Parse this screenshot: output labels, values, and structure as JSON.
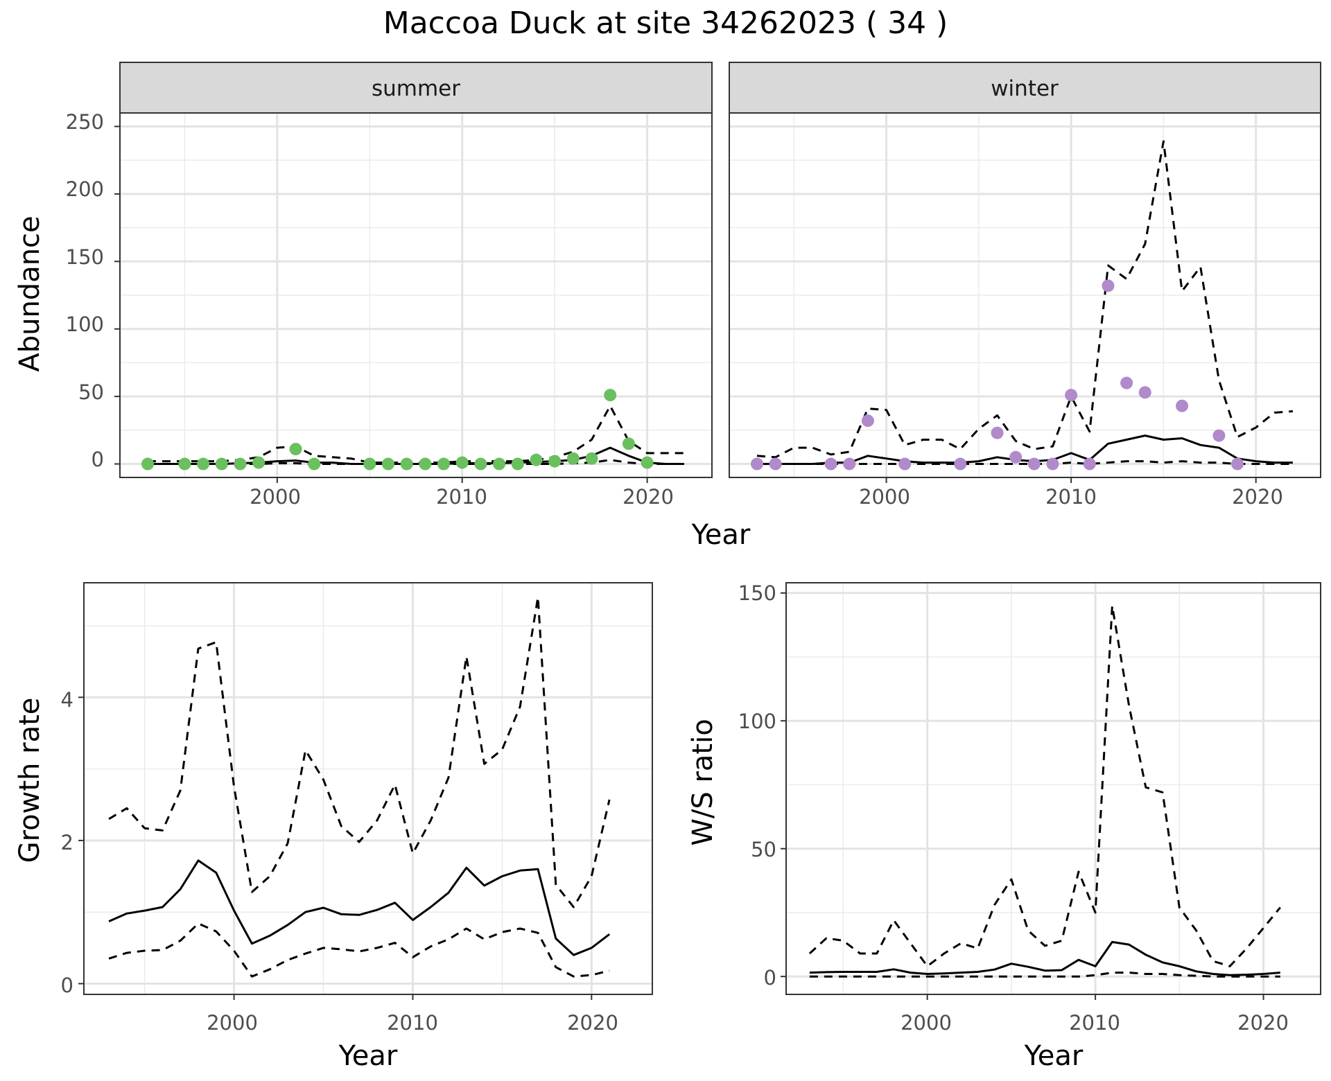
{
  "title": "Maccoa Duck at site 34262023 ( 34 )",
  "colors": {
    "summer_points": "#6abf5e",
    "winter_points": "#b08acb",
    "line": "#000000"
  },
  "abundance_panel": {
    "ylabel": "Abundance",
    "xlabel": "Year",
    "y_ticks": [
      "0",
      "50",
      "100",
      "150",
      "200",
      "250"
    ],
    "x_ticks": [
      "2000",
      "2010",
      "2020"
    ],
    "strip_summer": "summer",
    "strip_winter": "winter"
  },
  "growth_panel": {
    "ylabel": "Growth rate",
    "xlabel": "Year",
    "y_ticks": [
      "0",
      "2",
      "4"
    ],
    "x_ticks": [
      "2000",
      "2010",
      "2020"
    ]
  },
  "ratio_panel": {
    "ylabel": "W/S ratio",
    "xlabel": "Year",
    "y_ticks": [
      "0",
      "50",
      "100",
      "150"
    ],
    "x_ticks": [
      "2000",
      "2010",
      "2020"
    ]
  },
  "chart_data": [
    {
      "type": "scatter",
      "facet": "summer",
      "ylim": [
        -10,
        260
      ],
      "xlim": [
        1991.5,
        2023.5
      ],
      "points": {
        "x": [
          1993,
          1995,
          1996,
          1997,
          1998,
          1999,
          2001,
          2002,
          2005,
          2006,
          2007,
          2008,
          2009,
          2010,
          2011,
          2012,
          2013,
          2014,
          2015,
          2016,
          2017,
          2018,
          2019,
          2020
        ],
        "y": [
          0,
          0,
          0,
          0,
          0,
          1,
          11,
          0,
          0,
          0,
          0,
          0,
          0,
          1,
          0,
          0,
          0,
          3,
          2,
          4,
          4,
          51,
          15,
          1
        ]
      },
      "series": [
        {
          "name": "estimate",
          "style": "solid",
          "x": [
            1993,
            1994,
            1995,
            1996,
            1997,
            1998,
            1999,
            2000,
            2001,
            2002,
            2003,
            2004,
            2005,
            2006,
            2007,
            2008,
            2009,
            2010,
            2011,
            2012,
            2013,
            2014,
            2015,
            2016,
            2017,
            2018,
            2019,
            2020,
            2021,
            2022
          ],
          "y": [
            0,
            0,
            0,
            0,
            0,
            0.5,
            1,
            2,
            2.5,
            1,
            1,
            0,
            0,
            0,
            0,
            0,
            0,
            0.5,
            0.5,
            0.5,
            1,
            1.5,
            2,
            3,
            6,
            12,
            6,
            1,
            0,
            0
          ]
        },
        {
          "name": "upper",
          "style": "dashed",
          "x": [
            1993,
            1994,
            1995,
            1996,
            1997,
            1998,
            1999,
            2000,
            2001,
            2002,
            2003,
            2004,
            2005,
            2006,
            2007,
            2008,
            2009,
            2010,
            2011,
            2012,
            2013,
            2014,
            2015,
            2016,
            2017,
            2018,
            2019,
            2020,
            2021,
            2022
          ],
          "y": [
            2,
            2,
            2,
            2,
            2,
            3,
            5,
            12,
            13,
            6,
            5,
            4,
            1,
            1,
            1,
            1,
            1,
            2,
            2,
            2,
            2,
            3,
            5,
            9,
            18,
            43,
            17,
            8,
            8,
            8
          ]
        },
        {
          "name": "lower",
          "style": "dashed",
          "x": [
            1993,
            1994,
            1995,
            1996,
            1997,
            1998,
            1999,
            2000,
            2001,
            2002,
            2003,
            2004,
            2005,
            2006,
            2007,
            2008,
            2009,
            2010,
            2011,
            2012,
            2013,
            2014,
            2015,
            2016,
            2017,
            2018,
            2019,
            2020,
            2021,
            2022
          ],
          "y": [
            0,
            0,
            0,
            0,
            0,
            0,
            0,
            0.5,
            0.5,
            0,
            0,
            0,
            0,
            0,
            0,
            0,
            0,
            0,
            0,
            0,
            0,
            0,
            0,
            0.5,
            1,
            3,
            1,
            0,
            0,
            0
          ]
        }
      ]
    },
    {
      "type": "scatter",
      "facet": "winter",
      "ylim": [
        -10,
        260
      ],
      "xlim": [
        1991.5,
        2023.5
      ],
      "points": {
        "x": [
          1993,
          1994,
          1997,
          1998,
          1999,
          2001,
          2004,
          2006,
          2007,
          2008,
          2009,
          2010,
          2011,
          2012,
          2013,
          2014,
          2016,
          2018,
          2019
        ],
        "y": [
          0,
          0,
          0,
          0,
          32,
          0,
          0,
          23,
          5,
          0,
          0,
          51,
          0,
          132,
          60,
          53,
          43,
          21,
          0
        ]
      },
      "series": [
        {
          "name": "estimate",
          "style": "solid",
          "x": [
            1993,
            1994,
            1995,
            1996,
            1997,
            1998,
            1999,
            2000,
            2001,
            2002,
            2003,
            2004,
            2005,
            2006,
            2007,
            2008,
            2009,
            2010,
            2011,
            2012,
            2013,
            2014,
            2015,
            2016,
            2017,
            2018,
            2019,
            2020,
            2021,
            2022
          ],
          "y": [
            0,
            0,
            0,
            0,
            1,
            1,
            6,
            4,
            2,
            1,
            1,
            1,
            2,
            5,
            3,
            2,
            3,
            8,
            3,
            15,
            18,
            21,
            18,
            19,
            14,
            12,
            4,
            2,
            1,
            1
          ]
        },
        {
          "name": "upper",
          "style": "dashed",
          "x": [
            1993,
            1994,
            1995,
            1996,
            1997,
            1998,
            1999,
            2000,
            2001,
            2002,
            2003,
            2004,
            2005,
            2006,
            2007,
            2008,
            2009,
            2010,
            2011,
            2012,
            2013,
            2014,
            2015,
            2016,
            2017,
            2018,
            2019,
            2020,
            2021,
            2022
          ],
          "y": [
            6,
            5,
            12,
            12,
            7,
            9,
            41,
            40,
            14,
            18,
            18,
            11,
            26,
            36,
            17,
            11,
            13,
            50,
            24,
            147,
            137,
            163,
            239,
            128,
            146,
            62,
            20,
            27,
            38,
            39
          ]
        },
        {
          "name": "lower",
          "style": "dashed",
          "x": [
            1993,
            1994,
            1995,
            1996,
            1997,
            1998,
            1999,
            2000,
            2001,
            2002,
            2003,
            2004,
            2005,
            2006,
            2007,
            2008,
            2009,
            2010,
            2011,
            2012,
            2013,
            2014,
            2015,
            2016,
            2017,
            2018,
            2019,
            2020,
            2021,
            2022
          ],
          "y": [
            0,
            0,
            0,
            0,
            0,
            0,
            0,
            0,
            0,
            0,
            0,
            0,
            0,
            0,
            0,
            0,
            0,
            1,
            0,
            1,
            2,
            2,
            1,
            2,
            1,
            1,
            0,
            0,
            0,
            0
          ]
        }
      ]
    },
    {
      "type": "line",
      "xlabel": "Year",
      "ylabel": "Growth rate",
      "ylim": [
        -0.15,
        5.6
      ],
      "xlim": [
        1991.6,
        2023.4
      ],
      "series": [
        {
          "name": "estimate",
          "style": "solid",
          "x": [
            1993,
            1994,
            1995,
            1996,
            1997,
            1998,
            1999,
            2000,
            2001,
            2002,
            2003,
            2004,
            2005,
            2006,
            2007,
            2008,
            2009,
            2010,
            2011,
            2012,
            2013,
            2014,
            2015,
            2016,
            2017,
            2018,
            2019,
            2020,
            2021
          ],
          "y": [
            0.87,
            0.98,
            1.02,
            1.07,
            1.32,
            1.72,
            1.55,
            1.02,
            0.56,
            0.67,
            0.82,
            1.0,
            1.06,
            0.97,
            0.96,
            1.03,
            1.13,
            0.89,
            1.07,
            1.27,
            1.62,
            1.37,
            1.5,
            1.58,
            1.6,
            0.63,
            0.4,
            0.5,
            0.69
          ]
        },
        {
          "name": "upper",
          "style": "dashed",
          "x": [
            1993,
            1994,
            1995,
            1996,
            1997,
            1998,
            1999,
            2000,
            2001,
            2002,
            2003,
            2004,
            2005,
            2006,
            2007,
            2008,
            2009,
            2010,
            2011,
            2012,
            2013,
            2014,
            2015,
            2016,
            2017,
            2018,
            2019,
            2020,
            2021
          ],
          "y": [
            2.3,
            2.45,
            2.17,
            2.14,
            2.7,
            4.68,
            4.77,
            2.75,
            1.28,
            1.5,
            1.96,
            3.26,
            2.85,
            2.2,
            1.98,
            2.28,
            2.78,
            1.82,
            2.28,
            2.88,
            4.57,
            3.07,
            3.27,
            3.87,
            5.4,
            1.38,
            1.07,
            1.5,
            2.57
          ]
        },
        {
          "name": "lower",
          "style": "dashed",
          "x": [
            1993,
            1994,
            1995,
            1996,
            1997,
            1998,
            1999,
            2000,
            2001,
            2002,
            2003,
            2004,
            2005,
            2006,
            2007,
            2008,
            2009,
            2010,
            2011,
            2012,
            2013,
            2014,
            2015,
            2016,
            2017,
            2018,
            2019,
            2020,
            2021
          ],
          "y": [
            0.35,
            0.43,
            0.46,
            0.47,
            0.6,
            0.84,
            0.73,
            0.46,
            0.1,
            0.2,
            0.33,
            0.42,
            0.5,
            0.48,
            0.45,
            0.5,
            0.57,
            0.37,
            0.52,
            0.62,
            0.77,
            0.62,
            0.72,
            0.77,
            0.71,
            0.23,
            0.1,
            0.12,
            0.18
          ]
        }
      ]
    },
    {
      "type": "line",
      "xlabel": "Year",
      "ylabel": "W/S ratio",
      "ylim": [
        -7,
        154
      ],
      "xlim": [
        1991.6,
        2023.4
      ],
      "series": [
        {
          "name": "estimate",
          "style": "solid",
          "x": [
            1993,
            1994,
            1995,
            1996,
            1997,
            1998,
            1999,
            2000,
            2001,
            2002,
            2003,
            2004,
            2005,
            2006,
            2007,
            2008,
            2009,
            2010,
            2011,
            2012,
            2013,
            2014,
            2015,
            2016,
            2017,
            2018,
            2019,
            2020,
            2021
          ],
          "y": [
            1.5,
            1.7,
            1.8,
            1.8,
            1.8,
            2.8,
            1.5,
            1.0,
            1.2,
            1.5,
            1.8,
            2.7,
            5,
            3.8,
            2.3,
            2.5,
            6.5,
            4,
            13.5,
            12.5,
            8.5,
            5.5,
            4,
            2,
            1,
            0.5,
            0.7,
            1,
            1.5
          ]
        },
        {
          "name": "upper",
          "style": "dashed",
          "x": [
            1993,
            1994,
            1995,
            1996,
            1997,
            1998,
            1999,
            2000,
            2001,
            2002,
            2003,
            2004,
            2005,
            2006,
            2007,
            2008,
            2009,
            2010,
            2011,
            2012,
            2013,
            2014,
            2015,
            2016,
            2017,
            2018,
            2019,
            2020,
            2021
          ],
          "y": [
            9,
            15,
            14,
            9,
            9,
            22,
            13,
            4,
            9,
            13,
            11,
            28,
            38,
            18,
            12,
            14,
            41,
            25,
            145,
            106,
            74,
            72,
            27,
            18,
            6,
            4,
            11,
            19,
            27
          ]
        },
        {
          "name": "lower",
          "style": "dashed",
          "x": [
            1993,
            1994,
            1995,
            1996,
            1997,
            1998,
            1999,
            2000,
            2001,
            2002,
            2003,
            2004,
            2005,
            2006,
            2007,
            2008,
            2009,
            2010,
            2011,
            2012,
            2013,
            2014,
            2015,
            2016,
            2017,
            2018,
            2019,
            2020,
            2021
          ],
          "y": [
            0,
            0,
            0,
            0,
            0,
            0,
            0,
            0,
            0,
            0,
            0,
            0,
            0,
            0,
            0,
            0,
            0,
            0.5,
            1.5,
            1.5,
            1,
            1,
            0.5,
            0.3,
            0,
            0,
            0,
            0,
            0
          ]
        }
      ]
    }
  ]
}
